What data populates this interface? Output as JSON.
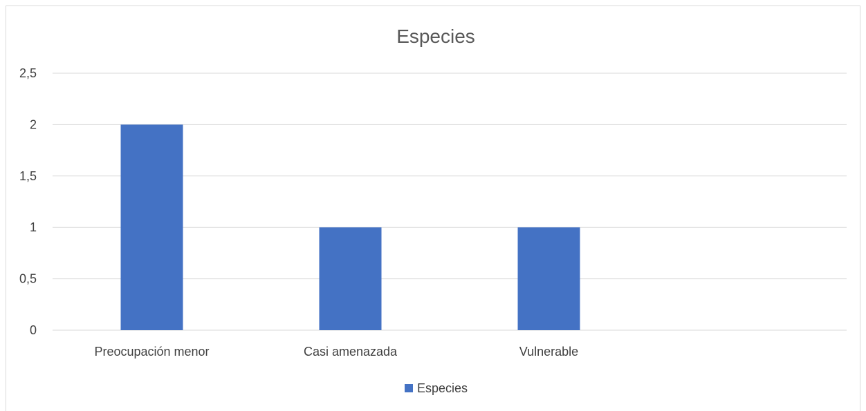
{
  "chart_data": {
    "type": "bar",
    "title": "Especies",
    "categories": [
      "Preocupación menor",
      "Casi amenazada",
      "Vulnerable",
      ""
    ],
    "series": [
      {
        "name": "Especies",
        "values": [
          2,
          1,
          1,
          null
        ],
        "color": "#4472C4"
      }
    ],
    "y_ticks": [
      "0",
      "0,5",
      "1",
      "1,5",
      "2",
      "2,5"
    ],
    "ylim": [
      0,
      2.5
    ],
    "xlabel": "",
    "ylabel": "",
    "grid": true,
    "legend_position": "bottom",
    "colors": {
      "bar": "#4472C4",
      "grid": "#d9d9d9",
      "text": "#404040",
      "title": "#595959"
    }
  }
}
